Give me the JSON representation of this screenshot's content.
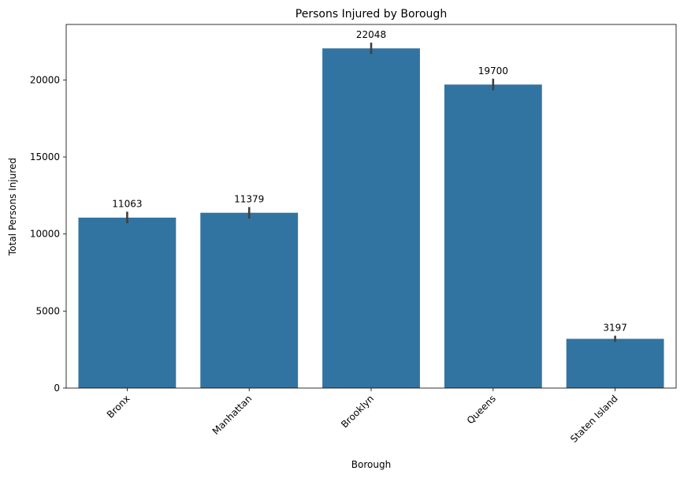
{
  "chart_data": {
    "type": "bar",
    "title": "Persons Injured by Borough",
    "xlabel": "Borough",
    "ylabel": "Total Persons Injured",
    "categories": [
      "Bronx",
      "Manhattan",
      "Brooklyn",
      "Queens",
      "Staten Island"
    ],
    "values": [
      11063,
      11379,
      22048,
      19700,
      3197
    ],
    "data_labels": [
      "11063",
      "11379",
      "22048",
      "19700",
      "3197"
    ],
    "error_bars": [
      [
        10700,
        11450
      ],
      [
        11000,
        11750
      ],
      [
        21680,
        22420
      ],
      [
        19320,
        20080
      ],
      [
        3000,
        3400
      ]
    ],
    "ylim": [
      0,
      23600
    ],
    "yticks": [
      0,
      5000,
      10000,
      15000,
      20000
    ],
    "ytick_labels": [
      "0",
      "5000",
      "10000",
      "15000",
      "20000"
    ],
    "bar_color": "#3274a1",
    "error_color": "#404040",
    "grid": false,
    "legend": "none"
  }
}
